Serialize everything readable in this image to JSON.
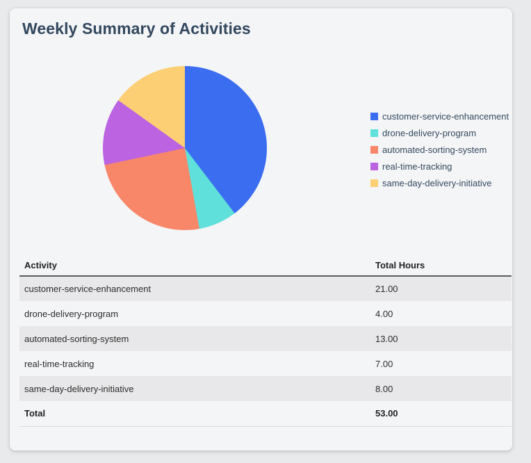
{
  "page": {
    "title": "Weekly Summary of Activities"
  },
  "chart_data": {
    "type": "pie",
    "title": "Weekly Summary of Activities",
    "categories": [
      "customer-service-enhancement",
      "drone-delivery-program",
      "automated-sorting-system",
      "real-time-tracking",
      "same-day-delivery-initiative"
    ],
    "values": [
      21,
      4,
      13,
      7,
      8
    ],
    "total": 53,
    "colors": [
      "#3a6df0",
      "#5fe0da",
      "#f8876a",
      "#bb63e0",
      "#fccf74"
    ],
    "start_angle_deg": 0,
    "direction": "clockwise",
    "legend_position": "right"
  },
  "table": {
    "headers": [
      "Activity",
      "Total Hours"
    ],
    "rows": [
      [
        "customer-service-enhancement",
        "21.00"
      ],
      [
        "drone-delivery-program",
        "4.00"
      ],
      [
        "automated-sorting-system",
        "13.00"
      ],
      [
        "real-time-tracking",
        "7.00"
      ],
      [
        "same-day-delivery-initiative",
        "8.00"
      ]
    ],
    "total_row": [
      "Total",
      "53.00"
    ]
  },
  "colors": {
    "page_bg": "#e9eaec",
    "card_bg": "#f4f5f7",
    "row_stripe": "#e8e8ea",
    "title_text": "#33475e",
    "legend_text": "#34495e",
    "header_border": "#5a5c61"
  }
}
